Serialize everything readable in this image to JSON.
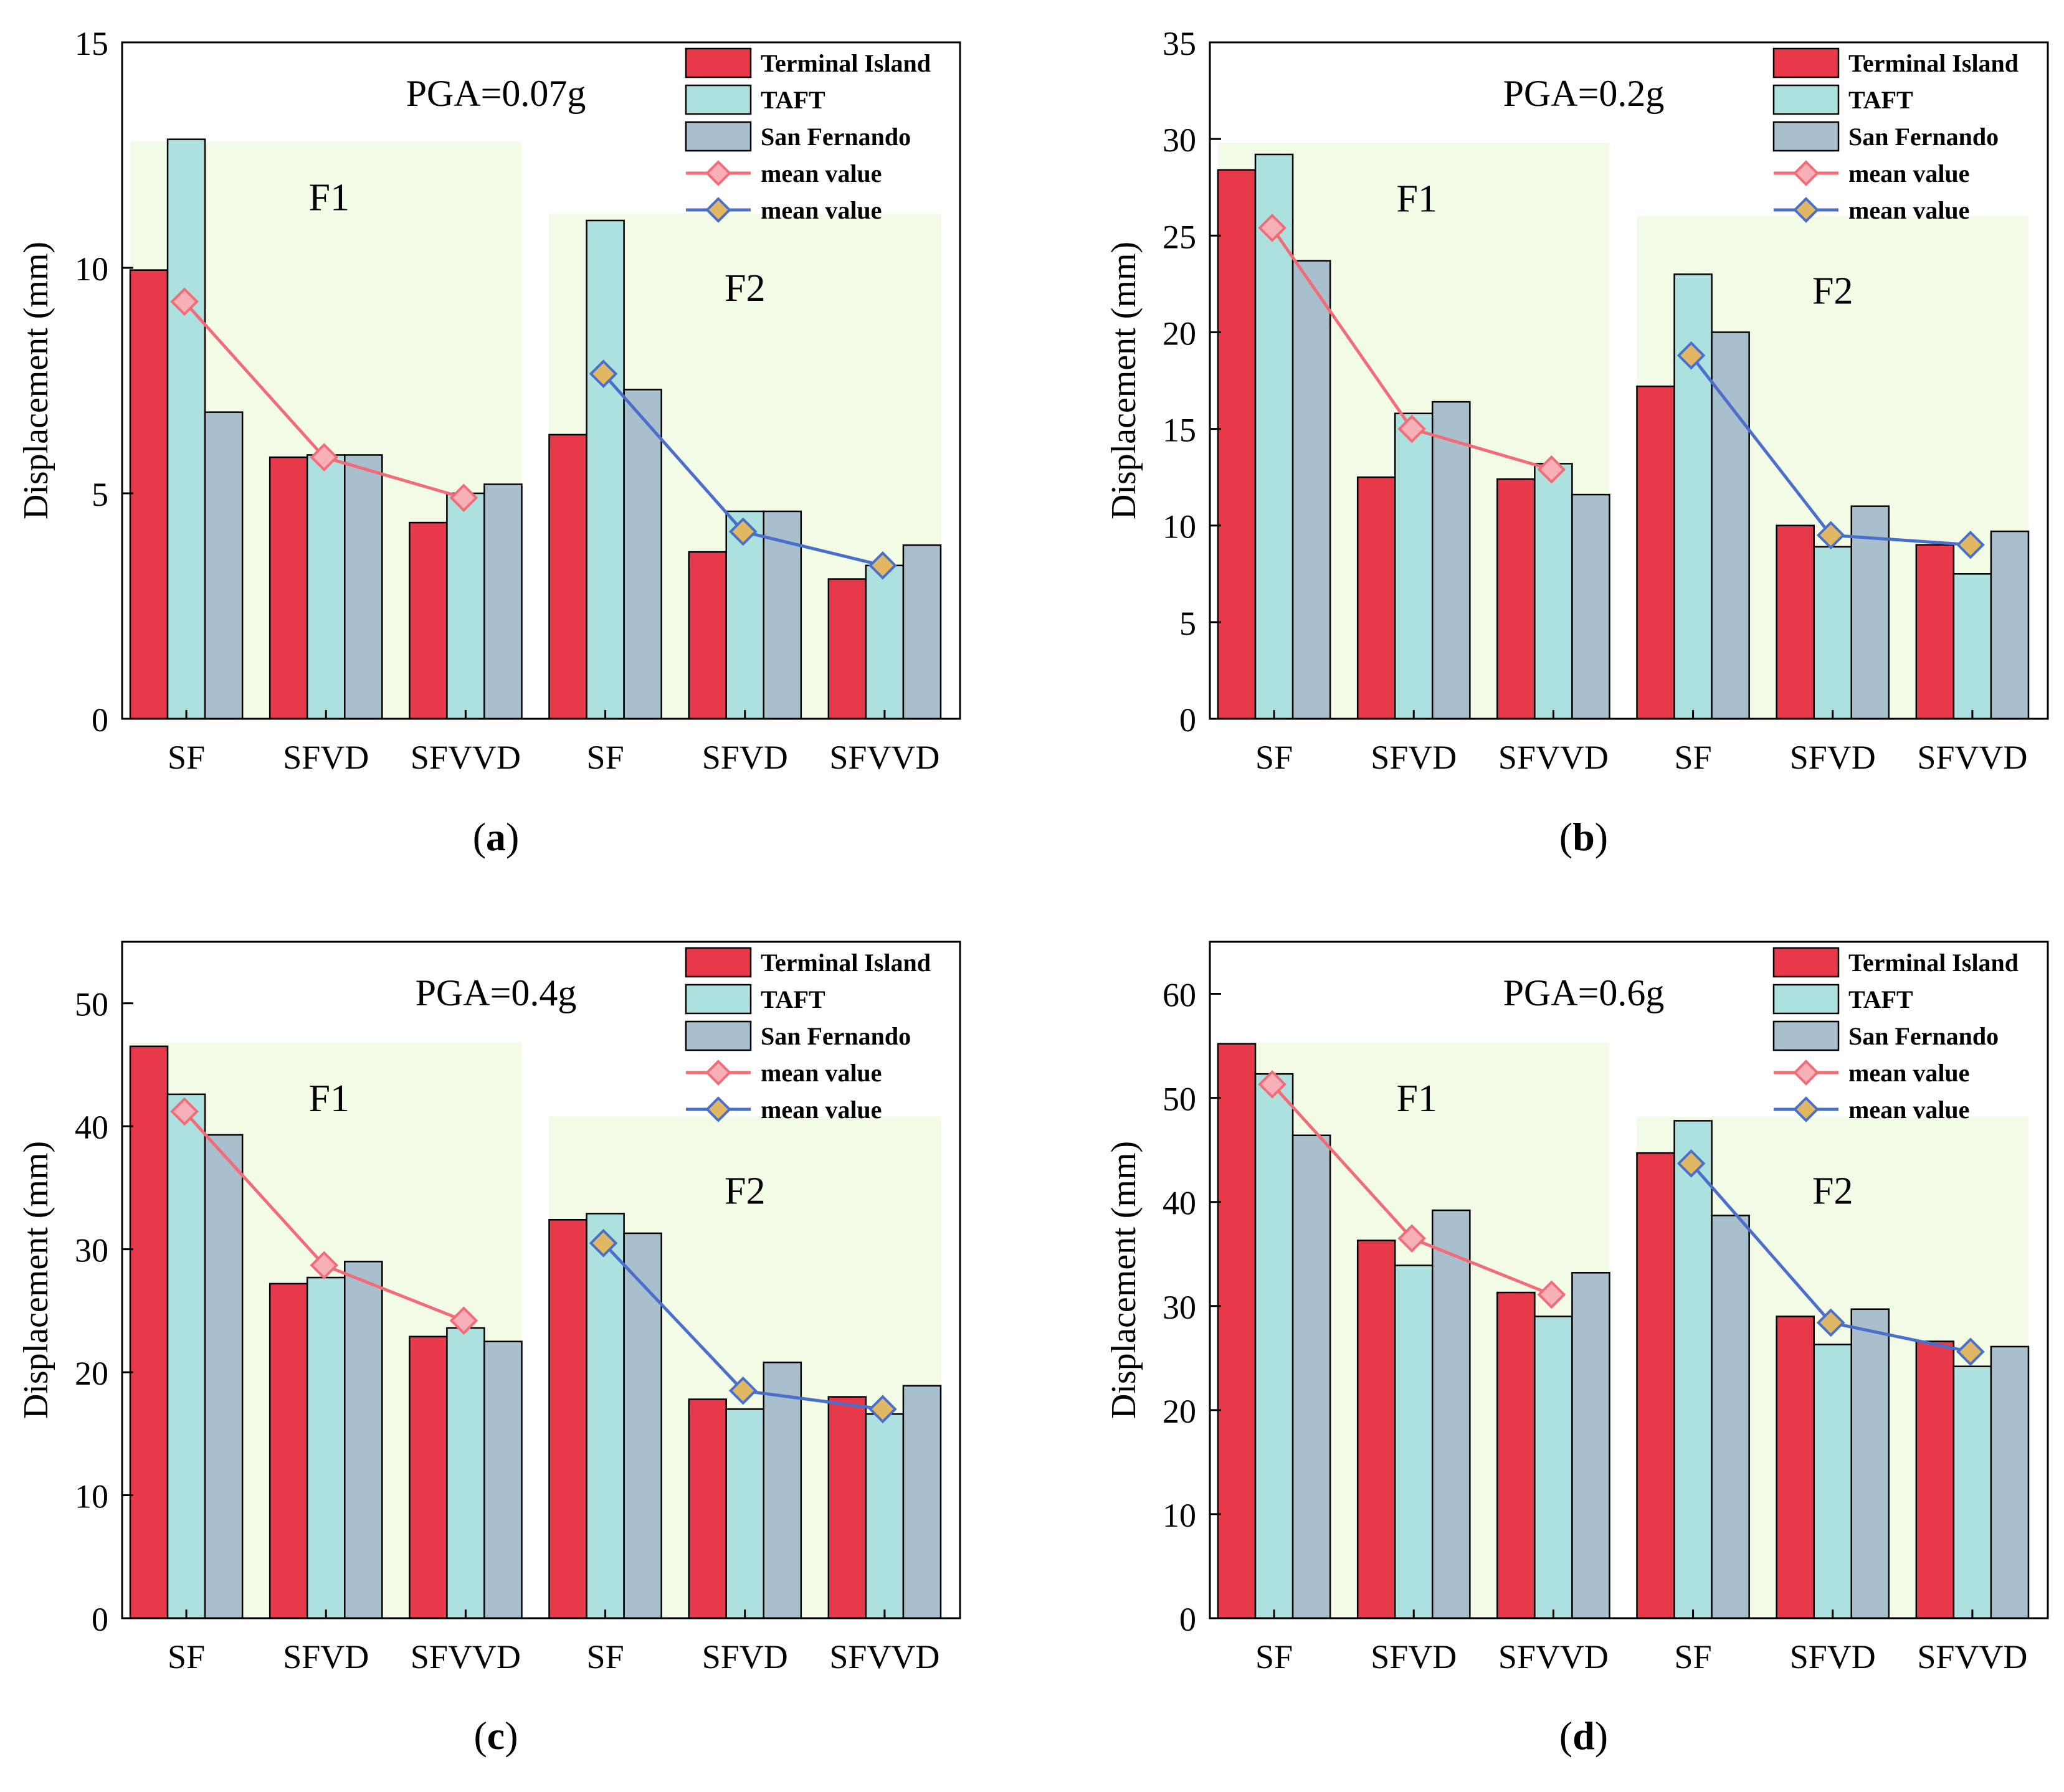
{
  "figure": {
    "group_labels": [
      "F1",
      "F2"
    ],
    "series_names": [
      "Terminal Island",
      "TAFT",
      "San Fernando"
    ],
    "mean_labels": [
      "mean value",
      "mean value"
    ],
    "colors": {
      "Terminal Island": "#e8394b",
      "TAFT": "#ade1df",
      "San Fernando": "#a8bfcd",
      "mean_F1_line": "#f26c78",
      "mean_F1_marker": "#f7b0b7",
      "mean_F2_line": "#4a6fc9",
      "mean_F2_marker": "#e2b764",
      "shading": "#f2fbe6"
    }
  },
  "chart_data": [
    {
      "type": "bar",
      "panel_label": "a",
      "title": "PGA=0.07g",
      "xlabel": "",
      "ylabel": "Displacement (mm)",
      "ylim": [
        0,
        15
      ],
      "yticks": [
        0,
        5,
        10,
        15
      ],
      "categories": [
        "SF",
        "SFVD",
        "SFVVD",
        "SF",
        "SFVD",
        "SFVVD"
      ],
      "series": [
        {
          "name": "Terminal Island",
          "values": [
            9.95,
            5.8,
            4.35,
            6.3,
            3.7,
            3.1
          ]
        },
        {
          "name": "TAFT",
          "values": [
            12.85,
            5.85,
            5.0,
            11.05,
            4.6,
            3.4
          ]
        },
        {
          "name": "San Fernando",
          "values": [
            6.8,
            5.85,
            5.2,
            7.3,
            4.6,
            3.85
          ]
        }
      ],
      "mean_F1": [
        9.25,
        5.8,
        4.9
      ],
      "mean_F2": [
        7.65,
        4.15,
        3.4
      ],
      "shade_F1_top": 12.8,
      "shade_F2_top": 11.2
    },
    {
      "type": "bar",
      "panel_label": "b",
      "title": "PGA=0.2g",
      "xlabel": "",
      "ylabel": "Displacement (mm)",
      "ylim": [
        0,
        35
      ],
      "yticks": [
        0,
        5,
        10,
        15,
        20,
        25,
        30,
        35
      ],
      "categories": [
        "SF",
        "SFVD",
        "SFVVD",
        "SF",
        "SFVD",
        "SFVVD"
      ],
      "series": [
        {
          "name": "Terminal Island",
          "values": [
            28.4,
            12.5,
            12.4,
            17.2,
            10.0,
            9.0
          ]
        },
        {
          "name": "TAFT",
          "values": [
            29.2,
            15.8,
            13.2,
            23.0,
            8.9,
            7.5
          ]
        },
        {
          "name": "San Fernando",
          "values": [
            23.7,
            16.4,
            11.6,
            20.0,
            11.0,
            9.7
          ]
        }
      ],
      "mean_F1": [
        25.4,
        15.0,
        12.9
      ],
      "mean_F2": [
        18.8,
        9.5,
        9.0
      ],
      "shade_F1_top": 29.8,
      "shade_F2_top": 26.0
    },
    {
      "type": "bar",
      "panel_label": "c",
      "title": "PGA=0.4g",
      "xlabel": "",
      "ylabel": "Displacement (mm)",
      "ylim": [
        0,
        55
      ],
      "yticks": [
        0,
        10,
        20,
        30,
        40,
        50
      ],
      "categories": [
        "SF",
        "SFVD",
        "SFVVD",
        "SF",
        "SFVD",
        "SFVVD"
      ],
      "series": [
        {
          "name": "Terminal Island",
          "values": [
            46.5,
            27.2,
            22.9,
            32.4,
            17.8,
            18.0
          ]
        },
        {
          "name": "TAFT",
          "values": [
            42.6,
            27.7,
            23.6,
            32.9,
            17.0,
            16.6
          ]
        },
        {
          "name": "San Fernando",
          "values": [
            39.3,
            29.0,
            22.5,
            31.3,
            20.8,
            18.9
          ]
        }
      ],
      "mean_F1": [
        41.2,
        28.7,
        24.2
      ],
      "mean_F2": [
        30.5,
        18.5,
        17.0
      ],
      "shade_F1_top": 46.8,
      "shade_F2_top": 40.8
    },
    {
      "type": "bar",
      "panel_label": "d",
      "title": "PGA=0.6g",
      "xlabel": "",
      "ylabel": "Displacement (mm)",
      "ylim": [
        0,
        65
      ],
      "yticks": [
        0,
        10,
        20,
        30,
        40,
        50,
        60
      ],
      "categories": [
        "SF",
        "SFVD",
        "SFVVD",
        "SF",
        "SFVD",
        "SFVVD"
      ],
      "series": [
        {
          "name": "Terminal Island",
          "values": [
            55.2,
            36.3,
            31.3,
            44.7,
            29.0,
            26.6
          ]
        },
        {
          "name": "TAFT",
          "values": [
            52.3,
            33.9,
            29.0,
            47.8,
            26.3,
            24.2
          ]
        },
        {
          "name": "San Fernando",
          "values": [
            46.4,
            39.2,
            33.2,
            38.7,
            29.7,
            26.1
          ]
        }
      ],
      "mean_F1": [
        51.3,
        36.5,
        31.1
      ],
      "mean_F2": [
        43.7,
        28.4,
        25.6
      ],
      "shade_F1_top": 55.3,
      "shade_F2_top": 48.2
    }
  ]
}
